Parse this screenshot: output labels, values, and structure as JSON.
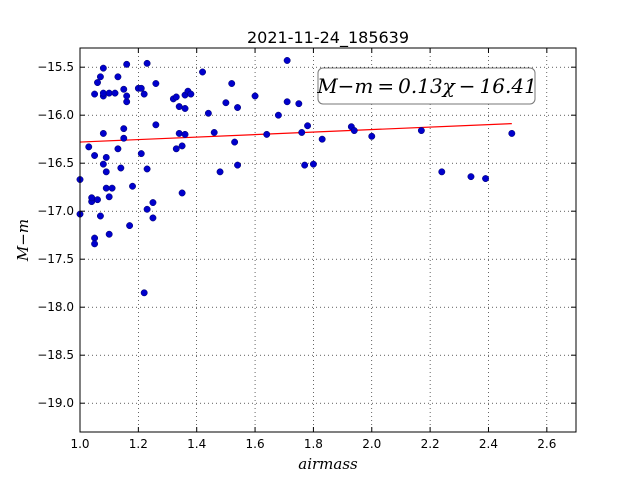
{
  "chart_data": {
    "type": "scatter",
    "title": "2021-11-24_185639",
    "xlabel": "airmass",
    "ylabel": "M−m",
    "xlim": [
      1.0,
      2.7
    ],
    "ylim": [
      -15.3,
      -19.3
    ],
    "x_ticks": [
      1.0,
      1.2,
      1.4,
      1.6,
      1.8,
      2.0,
      2.2,
      2.4,
      2.6
    ],
    "x_tick_labels": [
      "1.0",
      "1.2",
      "1.4",
      "1.6",
      "1.8",
      "2.0",
      "2.2",
      "2.4",
      "2.6"
    ],
    "y_ticks": [
      -15.5,
      -16.0,
      -16.5,
      -17.0,
      -17.5,
      -18.0,
      -18.5,
      -19.0
    ],
    "y_tick_labels": [
      "−15.5",
      "−16.0",
      "−16.5",
      "−17.0",
      "−17.5",
      "−18.0",
      "−18.5",
      "−19.0"
    ],
    "grid": true,
    "annotation": "M−m = 0.13χ − 16.41",
    "fit": {
      "slope": 0.13,
      "intercept": -16.41,
      "x_range": [
        1.0,
        2.48
      ],
      "color": "#ff0000"
    },
    "point_color": "#0000cc",
    "points": [
      [
        1.0,
        -16.67
      ],
      [
        1.0,
        -17.03
      ],
      [
        1.03,
        -16.33
      ],
      [
        1.04,
        -16.9
      ],
      [
        1.04,
        -16.86
      ],
      [
        1.05,
        -17.28
      ],
      [
        1.05,
        -17.34
      ],
      [
        1.05,
        -15.78
      ],
      [
        1.06,
        -15.66
      ],
      [
        1.05,
        -16.42
      ],
      [
        1.06,
        -16.88
      ],
      [
        1.07,
        -15.6
      ],
      [
        1.07,
        -17.05
      ],
      [
        1.08,
        -15.8
      ],
      [
        1.08,
        -15.77
      ],
      [
        1.08,
        -16.19
      ],
      [
        1.08,
        -16.51
      ],
      [
        1.08,
        -15.51
      ],
      [
        1.09,
        -16.59
      ],
      [
        1.09,
        -16.44
      ],
      [
        1.09,
        -16.76
      ],
      [
        1.1,
        -15.77
      ],
      [
        1.1,
        -16.85
      ],
      [
        1.1,
        -17.24
      ],
      [
        1.11,
        -16.76
      ],
      [
        1.12,
        -15.77
      ],
      [
        1.13,
        -15.6
      ],
      [
        1.13,
        -16.35
      ],
      [
        1.14,
        -16.55
      ],
      [
        1.15,
        -16.14
      ],
      [
        1.15,
        -16.24
      ],
      [
        1.15,
        -15.73
      ],
      [
        1.16,
        -15.86
      ],
      [
        1.16,
        -15.8
      ],
      [
        1.16,
        -15.47
      ],
      [
        1.17,
        -17.15
      ],
      [
        1.18,
        -16.74
      ],
      [
        1.2,
        -15.72
      ],
      [
        1.21,
        -15.72
      ],
      [
        1.21,
        -16.4
      ],
      [
        1.22,
        -15.78
      ],
      [
        1.23,
        -16.98
      ],
      [
        1.23,
        -15.46
      ],
      [
        1.23,
        -16.56
      ],
      [
        1.25,
        -16.91
      ],
      [
        1.25,
        -17.07
      ],
      [
        1.26,
        -16.1
      ],
      [
        1.26,
        -15.67
      ],
      [
        1.22,
        -17.85
      ],
      [
        1.32,
        -15.83
      ],
      [
        1.33,
        -16.35
      ],
      [
        1.33,
        -15.81
      ],
      [
        1.34,
        -15.91
      ],
      [
        1.34,
        -16.19
      ],
      [
        1.35,
        -16.32
      ],
      [
        1.35,
        -16.81
      ],
      [
        1.36,
        -15.93
      ],
      [
        1.36,
        -16.2
      ],
      [
        1.36,
        -15.79
      ],
      [
        1.37,
        -15.75
      ],
      [
        1.38,
        -15.78
      ],
      [
        1.42,
        -15.55
      ],
      [
        1.44,
        -15.98
      ],
      [
        1.46,
        -16.18
      ],
      [
        1.48,
        -16.59
      ],
      [
        1.5,
        -15.87
      ],
      [
        1.52,
        -15.67
      ],
      [
        1.53,
        -16.28
      ],
      [
        1.54,
        -16.52
      ],
      [
        1.54,
        -15.92
      ],
      [
        1.6,
        -15.8
      ],
      [
        1.64,
        -16.2
      ],
      [
        1.68,
        -16.0
      ],
      [
        1.71,
        -15.43
      ],
      [
        1.71,
        -15.86
      ],
      [
        1.75,
        -15.88
      ],
      [
        1.76,
        -16.18
      ],
      [
        1.77,
        -16.52
      ],
      [
        1.78,
        -16.11
      ],
      [
        1.8,
        -16.51
      ],
      [
        1.83,
        -16.25
      ],
      [
        1.93,
        -16.12
      ],
      [
        1.94,
        -16.16
      ],
      [
        2.0,
        -16.22
      ],
      [
        2.17,
        -16.16
      ],
      [
        2.24,
        -16.59
      ],
      [
        2.34,
        -16.64
      ],
      [
        2.39,
        -16.66
      ],
      [
        2.48,
        -16.19
      ]
    ]
  }
}
